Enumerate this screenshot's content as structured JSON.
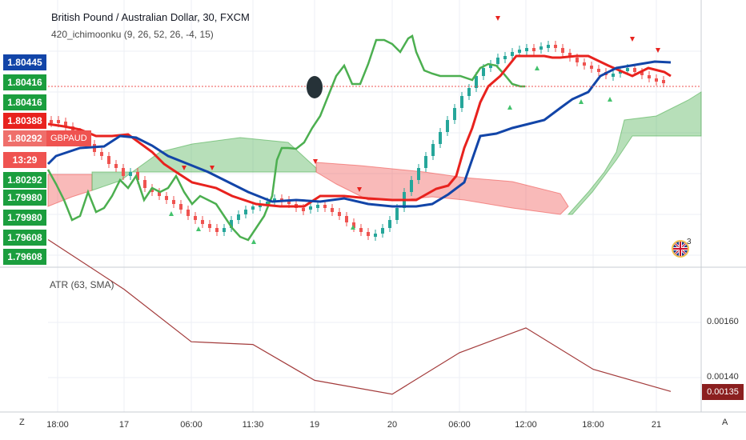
{
  "header": {
    "title": "British Pound / Australian Dollar, 30, FXCM",
    "indicator": "420_ichimoonku (9, 26, 52, 26, -4, 15)"
  },
  "price_badges": {
    "b1": "1.80445",
    "b2": "1.80416",
    "b3": "1.80416",
    "b4": "1.80388",
    "b5": "1.80292",
    "timer": "13:29",
    "b6": "1.80292",
    "b7": "1.79980",
    "b8": "1.79980",
    "b9": "1.79608",
    "b10": "1.79608"
  },
  "symbol_badge": "GBPAUD",
  "atr": {
    "label": "ATR (63, SMA)",
    "ticks": [
      "0.00160",
      "0.00140"
    ],
    "current": "0.00135"
  },
  "x_axis": [
    "18:00",
    "17",
    "06:00",
    "11:30",
    "19",
    "20",
    "06:00",
    "12:00",
    "18:00",
    "21"
  ],
  "corner": {
    "left": "Z",
    "right": "A"
  },
  "flag_count": "3",
  "chart_data": {
    "type": "line",
    "x": [
      "18:00",
      "17",
      "06:00",
      "11:30",
      "19",
      "20",
      "06:00",
      "12:00",
      "18:00",
      "21"
    ],
    "series": [
      {
        "name": "ATR (63, SMA)",
        "values": [
          0.0019,
          0.00172,
          0.00153,
          0.00152,
          0.00139,
          0.00134,
          0.00149,
          0.00158,
          0.00143,
          0.00135
        ]
      }
    ]
  },
  "colors": {
    "green": "#4caf50",
    "red": "#e8221e",
    "blue": "#1245a8",
    "atr": "#a33b3b",
    "cloud_green": "#4caf50",
    "cloud_red": "#ef5350"
  }
}
